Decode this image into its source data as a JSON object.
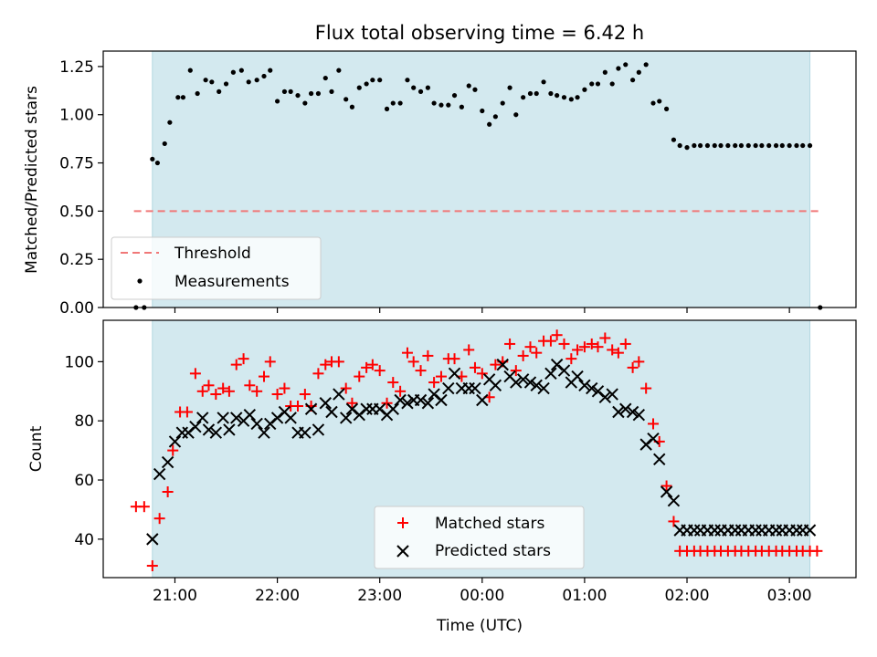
{
  "chart_data": [
    {
      "type": "scatter",
      "title": "Flux total observing time = 6.42 h",
      "xlabel": "",
      "ylabel": "Matched/Predicted stars",
      "ylim": [
        0,
        1.33
      ],
      "yticks": [
        0.0,
        0.25,
        0.5,
        0.75,
        1.0,
        1.25
      ],
      "ytick_labels": [
        "0.00",
        "0.25",
        "0.50",
        "0.75",
        "1.00",
        "1.25"
      ],
      "x_unit": "hours relative to 00:00 UTC",
      "xlim": [
        -3.7,
        3.65
      ],
      "shaded_span": [
        -3.22,
        3.2
      ],
      "shade_color": "#d3e9ef",
      "threshold": {
        "name": "Threshold",
        "value": 0.5,
        "x_range": [
          -3.4,
          3.3
        ],
        "color": "#f07878"
      },
      "legend_position": "lower-left",
      "legend": [
        "Threshold",
        "Measurements"
      ],
      "series": [
        {
          "name": "Measurements",
          "color": "#000000",
          "marker": "dot",
          "x": [
            -3.38,
            -3.3,
            -3.22,
            -3.17,
            -3.1,
            -3.05,
            -2.97,
            -2.92,
            -2.85,
            -2.78,
            -2.7,
            -2.64,
            -2.57,
            -2.5,
            -2.43,
            -2.35,
            -2.28,
            -2.2,
            -2.13,
            -2.07,
            -2.0,
            -1.93,
            -1.87,
            -1.8,
            -1.73,
            -1.67,
            -1.6,
            -1.53,
            -1.47,
            -1.4,
            -1.33,
            -1.27,
            -1.2,
            -1.13,
            -1.07,
            -1.0,
            -0.93,
            -0.87,
            -0.8,
            -0.73,
            -0.67,
            -0.6,
            -0.53,
            -0.47,
            -0.4,
            -0.33,
            -0.27,
            -0.2,
            -0.13,
            -0.07,
            0.0,
            0.07,
            0.13,
            0.2,
            0.27,
            0.33,
            0.4,
            0.47,
            0.53,
            0.6,
            0.67,
            0.73,
            0.8,
            0.87,
            0.93,
            1.0,
            1.07,
            1.13,
            1.2,
            1.27,
            1.33,
            1.4,
            1.47,
            1.53,
            1.6,
            1.67,
            1.73,
            1.8,
            1.87,
            1.93,
            2.0,
            2.07,
            2.13,
            2.2,
            2.27,
            2.33,
            2.4,
            2.47,
            2.53,
            2.6,
            2.67,
            2.73,
            2.8,
            2.87,
            2.93,
            3.0,
            3.07,
            3.13,
            3.2,
            3.3
          ],
          "y": [
            0.0,
            0.0,
            0.77,
            0.75,
            0.85,
            0.96,
            1.09,
            1.09,
            1.23,
            1.11,
            1.18,
            1.17,
            1.12,
            1.16,
            1.22,
            1.23,
            1.17,
            1.18,
            1.2,
            1.23,
            1.07,
            1.12,
            1.12,
            1.1,
            1.06,
            1.11,
            1.11,
            1.19,
            1.12,
            1.23,
            1.08,
            1.04,
            1.14,
            1.16,
            1.18,
            1.18,
            1.03,
            1.06,
            1.06,
            1.18,
            1.14,
            1.12,
            1.14,
            1.06,
            1.05,
            1.05,
            1.1,
            1.04,
            1.15,
            1.13,
            1.02,
            0.95,
            0.99,
            1.06,
            1.14,
            1.0,
            1.09,
            1.11,
            1.11,
            1.17,
            1.11,
            1.1,
            1.09,
            1.08,
            1.09,
            1.13,
            1.16,
            1.16,
            1.22,
            1.16,
            1.24,
            1.26,
            1.18,
            1.22,
            1.26,
            1.06,
            1.07,
            1.03,
            0.87,
            0.84,
            0.83,
            0.84,
            0.84,
            0.84,
            0.84,
            0.84,
            0.84,
            0.84,
            0.84,
            0.84,
            0.84,
            0.84,
            0.84,
            0.84,
            0.84,
            0.84,
            0.84,
            0.84,
            0.84,
            0.0
          ]
        }
      ]
    },
    {
      "type": "scatter",
      "title": "",
      "xlabel": "Time (UTC)",
      "ylabel": "Count",
      "ylim": [
        27,
        114
      ],
      "yticks": [
        40,
        60,
        80,
        100
      ],
      "ytick_labels": [
        "40",
        "60",
        "80",
        "100"
      ],
      "x_unit": "hours relative to 00:00 UTC",
      "xlim": [
        -3.7,
        3.65
      ],
      "xticks": [
        -3,
        -2,
        -1,
        0,
        1,
        2,
        3
      ],
      "xtick_labels": [
        "21:00",
        "22:00",
        "23:00",
        "00:00",
        "01:00",
        "02:00",
        "03:00"
      ],
      "shaded_span": [
        -3.22,
        3.2
      ],
      "shade_color": "#d3e9ef",
      "legend_position": "lower-center",
      "legend": [
        "Matched stars",
        "Predicted stars"
      ],
      "series": [
        {
          "name": "Matched stars",
          "color": "#ff0000",
          "marker": "plus",
          "x": [
            -3.38,
            -3.3,
            -3.22,
            -3.15,
            -3.07,
            -3.02,
            -2.95,
            -2.88,
            -2.8,
            -2.73,
            -2.67,
            -2.6,
            -2.53,
            -2.47,
            -2.4,
            -2.33,
            -2.27,
            -2.2,
            -2.13,
            -2.07,
            -2.0,
            -1.93,
            -1.87,
            -1.8,
            -1.73,
            -1.67,
            -1.6,
            -1.53,
            -1.47,
            -1.4,
            -1.33,
            -1.27,
            -1.2,
            -1.13,
            -1.07,
            -1.0,
            -0.93,
            -0.87,
            -0.8,
            -0.73,
            -0.67,
            -0.6,
            -0.53,
            -0.47,
            -0.4,
            -0.33,
            -0.27,
            -0.2,
            -0.13,
            -0.07,
            0.0,
            0.07,
            0.13,
            0.2,
            0.27,
            0.33,
            0.4,
            0.47,
            0.53,
            0.6,
            0.67,
            0.73,
            0.8,
            0.87,
            0.93,
            1.0,
            1.07,
            1.13,
            1.2,
            1.27,
            1.33,
            1.4,
            1.47,
            1.53,
            1.6,
            1.67,
            1.73,
            1.8,
            1.87,
            1.93,
            2.0,
            2.07,
            2.13,
            2.2,
            2.27,
            2.33,
            2.4,
            2.47,
            2.53,
            2.6,
            2.67,
            2.73,
            2.8,
            2.87,
            2.93,
            3.0,
            3.07,
            3.13,
            3.2,
            3.27
          ],
          "y": [
            51,
            51,
            31,
            47,
            56,
            70,
            83,
            83,
            96,
            90,
            92,
            89,
            91,
            90,
            99,
            101,
            92,
            90,
            95,
            100,
            89,
            91,
            85,
            85,
            89,
            85,
            96,
            99,
            100,
            100,
            91,
            86,
            95,
            98,
            99,
            97,
            86,
            93,
            90,
            103,
            100,
            97,
            102,
            93,
            95,
            101,
            101,
            95,
            104,
            98,
            96,
            88,
            99,
            100,
            106,
            97,
            102,
            105,
            103,
            107,
            107,
            109,
            106,
            101,
            104,
            105,
            106,
            105,
            108,
            104,
            103,
            106,
            98,
            100,
            91,
            79,
            73,
            58,
            46,
            36,
            36,
            36,
            36,
            36,
            36,
            36,
            36,
            36,
            36,
            36,
            36,
            36,
            36,
            36,
            36,
            36,
            36,
            36,
            36,
            36
          ]
        },
        {
          "name": "Predicted stars",
          "color": "#000000",
          "marker": "x",
          "x": [
            -3.22,
            -3.15,
            -3.07,
            -3.0,
            -2.93,
            -2.87,
            -2.8,
            -2.73,
            -2.67,
            -2.6,
            -2.53,
            -2.47,
            -2.4,
            -2.33,
            -2.27,
            -2.2,
            -2.13,
            -2.07,
            -2.0,
            -1.93,
            -1.87,
            -1.8,
            -1.73,
            -1.67,
            -1.6,
            -1.53,
            -1.47,
            -1.4,
            -1.33,
            -1.27,
            -1.2,
            -1.13,
            -1.07,
            -1.0,
            -0.93,
            -0.87,
            -0.8,
            -0.73,
            -0.67,
            -0.6,
            -0.53,
            -0.47,
            -0.4,
            -0.33,
            -0.27,
            -0.2,
            -0.13,
            -0.07,
            0.0,
            0.07,
            0.13,
            0.2,
            0.27,
            0.33,
            0.4,
            0.47,
            0.53,
            0.6,
            0.67,
            0.73,
            0.8,
            0.87,
            0.93,
            1.0,
            1.07,
            1.13,
            1.2,
            1.27,
            1.33,
            1.4,
            1.47,
            1.53,
            1.6,
            1.67,
            1.73,
            1.8,
            1.87,
            1.93,
            2.0,
            2.07,
            2.13,
            2.2,
            2.27,
            2.33,
            2.4,
            2.47,
            2.53,
            2.6,
            2.67,
            2.73,
            2.8,
            2.87,
            2.93,
            3.0,
            3.07,
            3.13,
            3.2
          ],
          "y": [
            40,
            62,
            66,
            73,
            76,
            76,
            78,
            81,
            77,
            76,
            81,
            77,
            81,
            80,
            82,
            79,
            76,
            79,
            81,
            83,
            81,
            76,
            76,
            84,
            77,
            86,
            83,
            89,
            81,
            84,
            82,
            84,
            84,
            84,
            82,
            84,
            87,
            86,
            87,
            87,
            86,
            89,
            87,
            91,
            96,
            91,
            91,
            91,
            87,
            94,
            92,
            99,
            95,
            93,
            94,
            93,
            92,
            91,
            96,
            99,
            97,
            93,
            95,
            92,
            91,
            90,
            88,
            89,
            83,
            84,
            83,
            82,
            72,
            74,
            67,
            56,
            53,
            43,
            43,
            43,
            43,
            43,
            43,
            43,
            43,
            43,
            43,
            43,
            43,
            43,
            43,
            43,
            43,
            43,
            43,
            43,
            43
          ]
        }
      ]
    }
  ]
}
